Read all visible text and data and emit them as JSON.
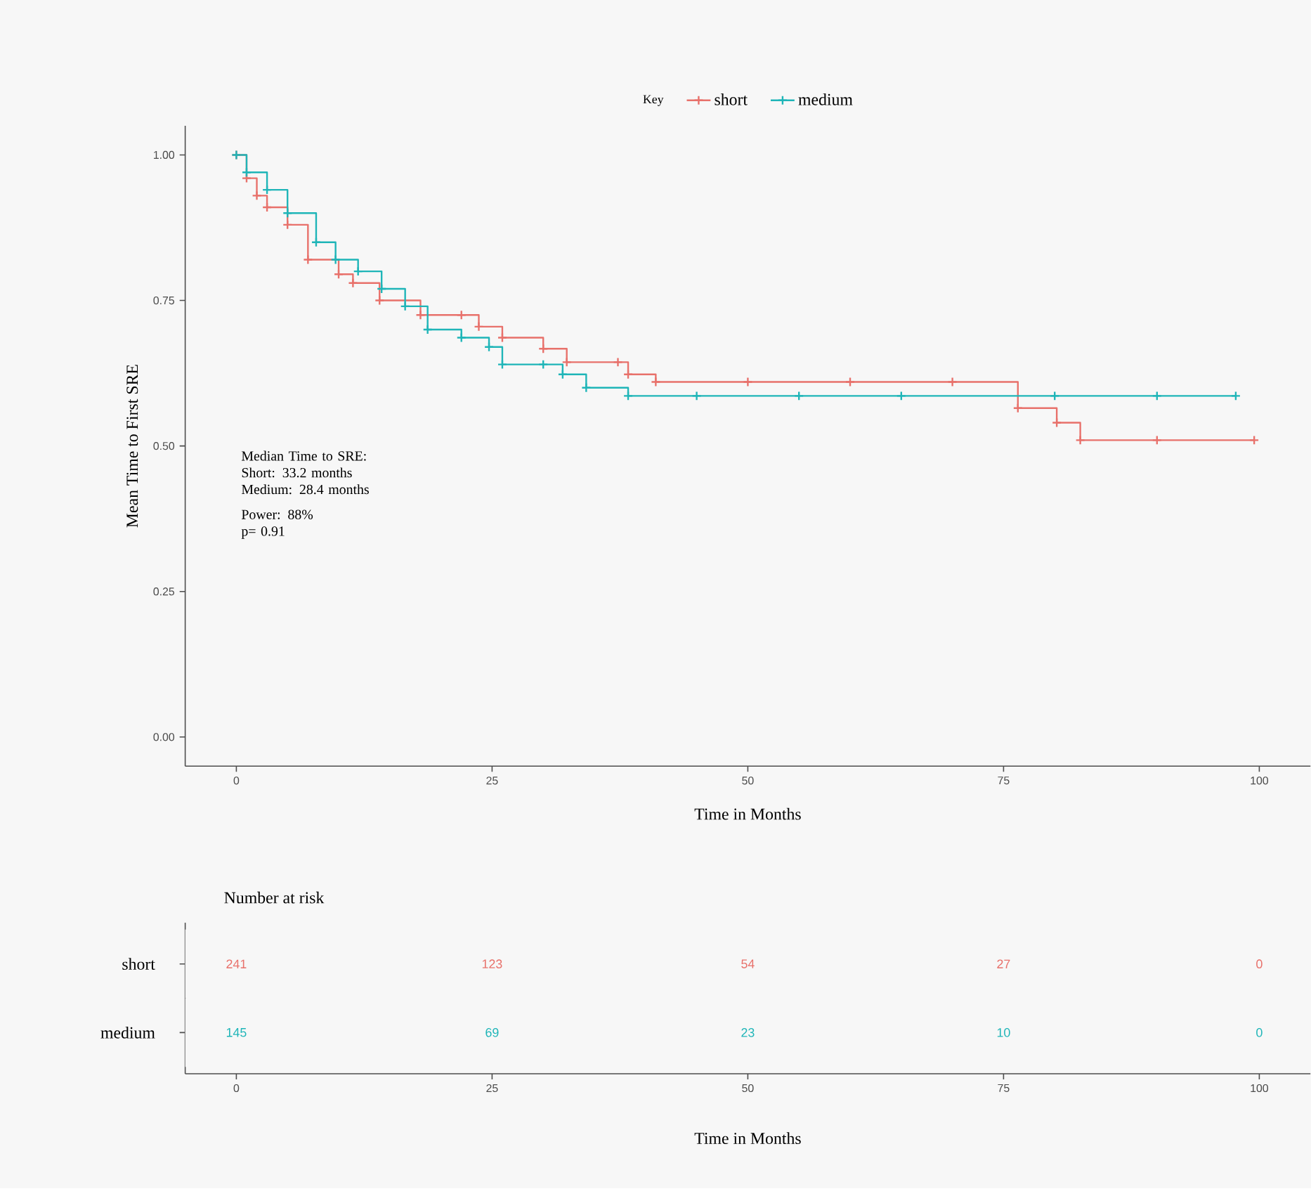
{
  "chart_data": [
    {
      "type": "step",
      "xlabel": "Time in Months",
      "ylabel": "Mean Time to First SRE",
      "legend_title": "Key",
      "legend": "top",
      "marker": "cross",
      "xlim": [
        -5,
        105
      ],
      "ylim": [
        -0.05,
        1.05
      ],
      "xticks": [
        0,
        25,
        50,
        75,
        100
      ],
      "yticks": [
        {
          "value": 0,
          "label": "0.00"
        },
        {
          "value": 0.25,
          "label": "0.25"
        },
        {
          "value": 0.5,
          "label": "0.50"
        },
        {
          "value": 0.75,
          "label": "0.75"
        },
        {
          "value": 1,
          "label": "1.00"
        }
      ],
      "series": [
        {
          "name": "short",
          "color": "#e8716b",
          "x": [
            0,
            1,
            2,
            3,
            5,
            7,
            10,
            11.4,
            14,
            18,
            22,
            23.7,
            26,
            30,
            32.3,
            37.3,
            38.3,
            41,
            50,
            60,
            70,
            76.4,
            80.2,
            82.5,
            90,
            99.5
          ],
          "values": [
            1,
            0.96,
            0.93,
            0.91,
            0.88,
            0.82,
            0.795,
            0.78,
            0.75,
            0.725,
            0.725,
            0.705,
            0.686,
            0.667,
            0.644,
            0.644,
            0.623,
            0.61,
            0.61,
            0.61,
            0.61,
            0.565,
            0.54,
            0.51,
            0.51,
            0.51
          ]
        },
        {
          "name": "medium",
          "color": "#1fb5b8",
          "x": [
            0,
            1,
            3,
            5,
            7.8,
            9.7,
            11.9,
            14.2,
            16.5,
            18.7,
            22,
            24.7,
            26,
            30,
            31.9,
            34.2,
            38.3,
            45,
            55,
            65,
            80,
            90,
            97.7
          ],
          "values": [
            1,
            0.97,
            0.94,
            0.9,
            0.85,
            0.82,
            0.8,
            0.77,
            0.74,
            0.7,
            0.686,
            0.67,
            0.64,
            0.64,
            0.623,
            0.6,
            0.586,
            0.586,
            0.586,
            0.586,
            0.586,
            0.586,
            0.586
          ]
        }
      ],
      "annotations": [
        "Median Time to SRE:",
        "Short: 33.2 months",
        "Medium: 28.4 months",
        "Power: 88%",
        "p= 0.91"
      ]
    },
    {
      "type": "heatmap",
      "title": "Number at risk",
      "xlabel": "Time in Months",
      "categories": [
        "0",
        "25",
        "50",
        "75",
        "100"
      ],
      "y_categories": [
        "short",
        "medium"
      ],
      "colors": [
        "#e8716b",
        "#1fb5b8"
      ],
      "data_labels": true,
      "cells": [
        [
          241,
          123,
          54,
          27,
          0
        ],
        [
          145,
          69,
          23,
          10,
          0
        ]
      ]
    }
  ]
}
